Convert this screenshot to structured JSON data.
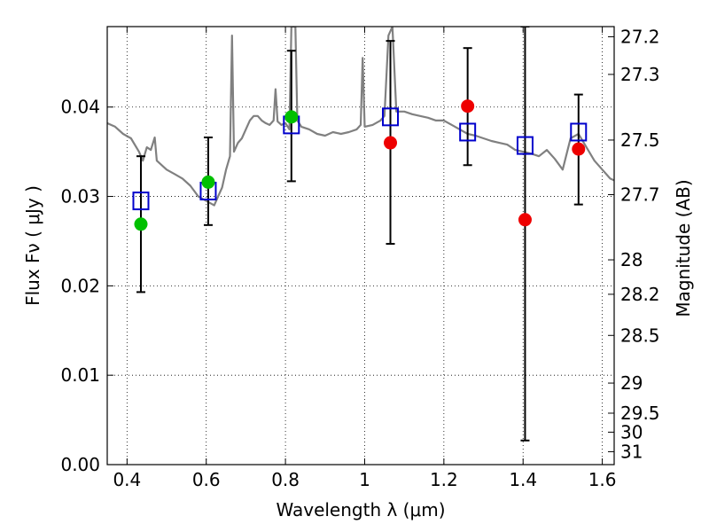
{
  "chart_data": {
    "type": "scatter",
    "xlabel": "Wavelength  λ (μm)",
    "ylabel": "Flux  Fν  ( μJy )",
    "ylabel_right": "Magnitude (AB)",
    "xlim": [
      0.35,
      1.63
    ],
    "ylim": [
      0.0,
      0.049
    ],
    "grid": true,
    "x_ticks": [
      {
        "value": 0.4,
        "label": "0.4"
      },
      {
        "value": 0.6,
        "label": "0.6"
      },
      {
        "value": 0.8,
        "label": "0.8"
      },
      {
        "value": 1.0,
        "label": "1"
      },
      {
        "value": 1.2,
        "label": "1.2"
      },
      {
        "value": 1.4,
        "label": "1.4"
      },
      {
        "value": 1.6,
        "label": "1.6"
      }
    ],
    "y_ticks": [
      {
        "value": 0.0,
        "label": "0.00"
      },
      {
        "value": 0.01,
        "label": "0.01"
      },
      {
        "value": 0.02,
        "label": "0.02"
      },
      {
        "value": 0.03,
        "label": "0.03"
      },
      {
        "value": 0.04,
        "label": "0.04"
      }
    ],
    "right_ticks": [
      {
        "mag": 27.2,
        "label": "27.2"
      },
      {
        "mag": 27.3,
        "label": "27.3"
      },
      {
        "mag": 27.5,
        "label": "27.5"
      },
      {
        "mag": 27.7,
        "label": "27.7"
      },
      {
        "mag": 28.0,
        "label": "28"
      },
      {
        "mag": 28.2,
        "label": "28.2"
      },
      {
        "mag": 28.5,
        "label": "28.5"
      },
      {
        "mag": 29.0,
        "label": "29"
      },
      {
        "mag": 29.5,
        "label": "29.5"
      },
      {
        "mag": 30.0,
        "label": "30"
      },
      {
        "mag": 31.0,
        "label": "31"
      }
    ],
    "series": [
      {
        "kind": "line",
        "color": "#808080",
        "points": [
          [
            0.35,
            0.0382
          ],
          [
            0.37,
            0.0378
          ],
          [
            0.39,
            0.037
          ],
          [
            0.41,
            0.0365
          ],
          [
            0.43,
            0.035
          ],
          [
            0.44,
            0.034
          ],
          [
            0.45,
            0.0355
          ],
          [
            0.46,
            0.0352
          ],
          [
            0.47,
            0.0366
          ],
          [
            0.475,
            0.034
          ],
          [
            0.5,
            0.033
          ],
          [
            0.52,
            0.0325
          ],
          [
            0.54,
            0.032
          ],
          [
            0.56,
            0.0312
          ],
          [
            0.58,
            0.03
          ],
          [
            0.6,
            0.0295
          ],
          [
            0.62,
            0.029
          ],
          [
            0.63,
            0.03
          ],
          [
            0.64,
            0.031
          ],
          [
            0.65,
            0.033
          ],
          [
            0.66,
            0.0345
          ],
          [
            0.665,
            0.048
          ],
          [
            0.67,
            0.035
          ],
          [
            0.68,
            0.036
          ],
          [
            0.69,
            0.0365
          ],
          [
            0.7,
            0.0375
          ],
          [
            0.71,
            0.0385
          ],
          [
            0.72,
            0.039
          ],
          [
            0.73,
            0.039
          ],
          [
            0.74,
            0.0385
          ],
          [
            0.75,
            0.0382
          ],
          [
            0.76,
            0.038
          ],
          [
            0.77,
            0.0385
          ],
          [
            0.775,
            0.042
          ],
          [
            0.78,
            0.0384
          ],
          [
            0.79,
            0.038
          ],
          [
            0.8,
            0.0382
          ],
          [
            0.81,
            0.0375
          ],
          [
            0.815,
            0.049
          ],
          [
            0.825,
            0.049
          ],
          [
            0.83,
            0.0385
          ],
          [
            0.84,
            0.0378
          ],
          [
            0.86,
            0.0375
          ],
          [
            0.88,
            0.037
          ],
          [
            0.9,
            0.0368
          ],
          [
            0.92,
            0.0372
          ],
          [
            0.94,
            0.037
          ],
          [
            0.96,
            0.0372
          ],
          [
            0.98,
            0.0375
          ],
          [
            0.99,
            0.038
          ],
          [
            0.995,
            0.0455
          ],
          [
            1.0,
            0.0378
          ],
          [
            1.02,
            0.038
          ],
          [
            1.04,
            0.0385
          ],
          [
            1.05,
            0.039
          ],
          [
            1.06,
            0.048
          ],
          [
            1.07,
            0.049
          ],
          [
            1.08,
            0.0395
          ],
          [
            1.1,
            0.0395
          ],
          [
            1.12,
            0.0392
          ],
          [
            1.14,
            0.039
          ],
          [
            1.16,
            0.0388
          ],
          [
            1.18,
            0.0385
          ],
          [
            1.2,
            0.0385
          ],
          [
            1.22,
            0.038
          ],
          [
            1.24,
            0.0375
          ],
          [
            1.26,
            0.037
          ],
          [
            1.28,
            0.0368
          ],
          [
            1.3,
            0.0365
          ],
          [
            1.32,
            0.0362
          ],
          [
            1.34,
            0.036
          ],
          [
            1.36,
            0.0358
          ],
          [
            1.38,
            0.0352
          ],
          [
            1.4,
            0.035
          ],
          [
            1.42,
            0.0348
          ],
          [
            1.44,
            0.0345
          ],
          [
            1.46,
            0.0352
          ],
          [
            1.48,
            0.0342
          ],
          [
            1.5,
            0.033
          ],
          [
            1.52,
            0.0365
          ],
          [
            1.54,
            0.037
          ],
          [
            1.56,
            0.0355
          ],
          [
            1.58,
            0.034
          ],
          [
            1.6,
            0.033
          ],
          [
            1.62,
            0.032
          ],
          [
            1.63,
            0.0318
          ]
        ]
      },
      {
        "kind": "errorbar",
        "color": "#000000",
        "points": [
          {
            "x": 0.435,
            "ylo": 0.0193,
            "yhi": 0.0345
          },
          {
            "x": 0.605,
            "ylo": 0.0268,
            "yhi": 0.0366
          },
          {
            "x": 0.815,
            "ylo": 0.0317,
            "yhi": 0.0463
          },
          {
            "x": 1.065,
            "ylo": 0.0247,
            "yhi": 0.0474
          },
          {
            "x": 1.26,
            "ylo": 0.0335,
            "yhi": 0.0466
          },
          {
            "x": 1.405,
            "ylo": 0.0027,
            "yhi": 0.049
          },
          {
            "x": 1.54,
            "ylo": 0.0291,
            "yhi": 0.0414
          }
        ]
      },
      {
        "kind": "square",
        "color": "#0000cc",
        "points": [
          [
            0.435,
            0.0295
          ],
          [
            0.605,
            0.0306
          ],
          [
            0.815,
            0.038
          ],
          [
            1.065,
            0.0389
          ],
          [
            1.26,
            0.0372
          ],
          [
            1.405,
            0.0357
          ],
          [
            1.54,
            0.0372
          ]
        ]
      },
      {
        "kind": "circle",
        "color": "#00c000",
        "points": [
          [
            0.435,
            0.0269
          ],
          [
            0.605,
            0.0316
          ],
          [
            0.815,
            0.0389
          ]
        ]
      },
      {
        "kind": "circle",
        "color": "#ee0000",
        "points": [
          [
            1.065,
            0.036
          ],
          [
            1.26,
            0.0401
          ],
          [
            1.405,
            0.0274
          ],
          [
            1.54,
            0.0353
          ]
        ]
      }
    ]
  }
}
